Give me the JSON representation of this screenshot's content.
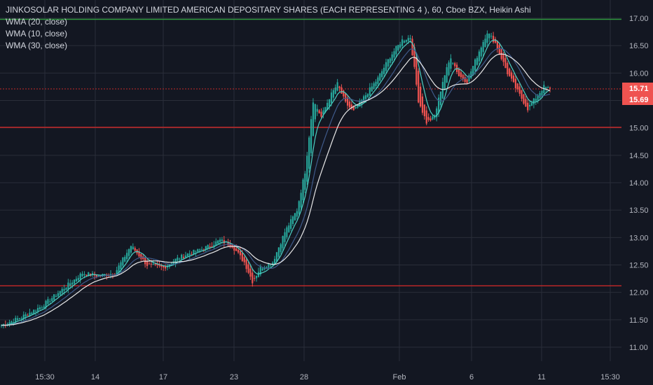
{
  "legend": {
    "title": "JINKOSOLAR HOLDING COMPANY LIMITED AMERICAN DEPOSITARY SHARES (EACH REPRESENTING 4 ), 60, Cboe BZX, Heikin Ashi",
    "indicators": [
      "WMA (20, close)",
      "WMA (10, close)",
      "WMA (30, close)"
    ]
  },
  "colors": {
    "background": "#131722",
    "grid": "#2a2e39",
    "up": "#26a69a",
    "down": "#ef5350",
    "wma_fast": "#4dd0c4",
    "wma_mid": "#3f5a8a",
    "wma_slow": "#e8e8e8",
    "resistance_green": "#2e9e3e",
    "support_red": "#c62828"
  },
  "chart_data": {
    "type": "candlestick",
    "style": "Heikin Ashi",
    "timeframe": "60",
    "exchange": "Cboe BZX",
    "x_tick_labels": [
      "15:30",
      "14",
      "17",
      "23",
      "28",
      "Feb",
      "6",
      "11",
      "15:30"
    ],
    "y_ticks": [
      "11.00",
      "11.50",
      "12.00",
      "12.50",
      "13.00",
      "13.50",
      "14.00",
      "14.50",
      "15.00",
      "15.50",
      "16.00",
      "16.50",
      "17.00"
    ],
    "ylim": [
      10.8,
      17.2
    ],
    "grid": true,
    "horizontal_levels": [
      {
        "price": 16.98,
        "color": "green",
        "style": "solid"
      },
      {
        "price": 15.71,
        "color": "red",
        "style": "dotted"
      },
      {
        "price": 15.01,
        "color": "red",
        "style": "solid"
      },
      {
        "price": 12.12,
        "color": "red",
        "style": "solid"
      }
    ],
    "price_badges": [
      {
        "label": "15.71",
        "price": 15.71
      },
      {
        "label": "15.69",
        "price": 15.69
      }
    ],
    "approx_close_path": [
      [
        0,
        11.4
      ],
      [
        10,
        11.55
      ],
      [
        20,
        11.75
      ],
      [
        30,
        12.05
      ],
      [
        40,
        12.35
      ],
      [
        48,
        12.3
      ],
      [
        56,
        12.35
      ],
      [
        64,
        12.85
      ],
      [
        72,
        12.5
      ],
      [
        80,
        12.45
      ],
      [
        86,
        12.6
      ],
      [
        92,
        12.7
      ],
      [
        100,
        12.8
      ],
      [
        108,
        12.95
      ],
      [
        114,
        12.85
      ],
      [
        120,
        12.55
      ],
      [
        124,
        12.2
      ],
      [
        128,
        12.45
      ],
      [
        134,
        12.55
      ],
      [
        140,
        13.1
      ],
      [
        146,
        13.5
      ],
      [
        150,
        14.2
      ],
      [
        154,
        15.5
      ],
      [
        158,
        15.2
      ],
      [
        162,
        15.55
      ],
      [
        166,
        15.8
      ],
      [
        170,
        15.45
      ],
      [
        174,
        15.3
      ],
      [
        180,
        15.6
      ],
      [
        186,
        15.9
      ],
      [
        192,
        16.3
      ],
      [
        198,
        16.6
      ],
      [
        202,
        16.65
      ],
      [
        206,
        15.5
      ],
      [
        210,
        15.1
      ],
      [
        214,
        15.2
      ],
      [
        218,
        15.85
      ],
      [
        222,
        16.3
      ],
      [
        226,
        15.95
      ],
      [
        230,
        15.85
      ],
      [
        236,
        16.4
      ],
      [
        240,
        16.75
      ],
      [
        244,
        16.55
      ],
      [
        250,
        16.0
      ],
      [
        256,
        15.6
      ],
      [
        260,
        15.35
      ],
      [
        264,
        15.55
      ],
      [
        268,
        15.75
      ],
      [
        271,
        15.7
      ]
    ]
  }
}
